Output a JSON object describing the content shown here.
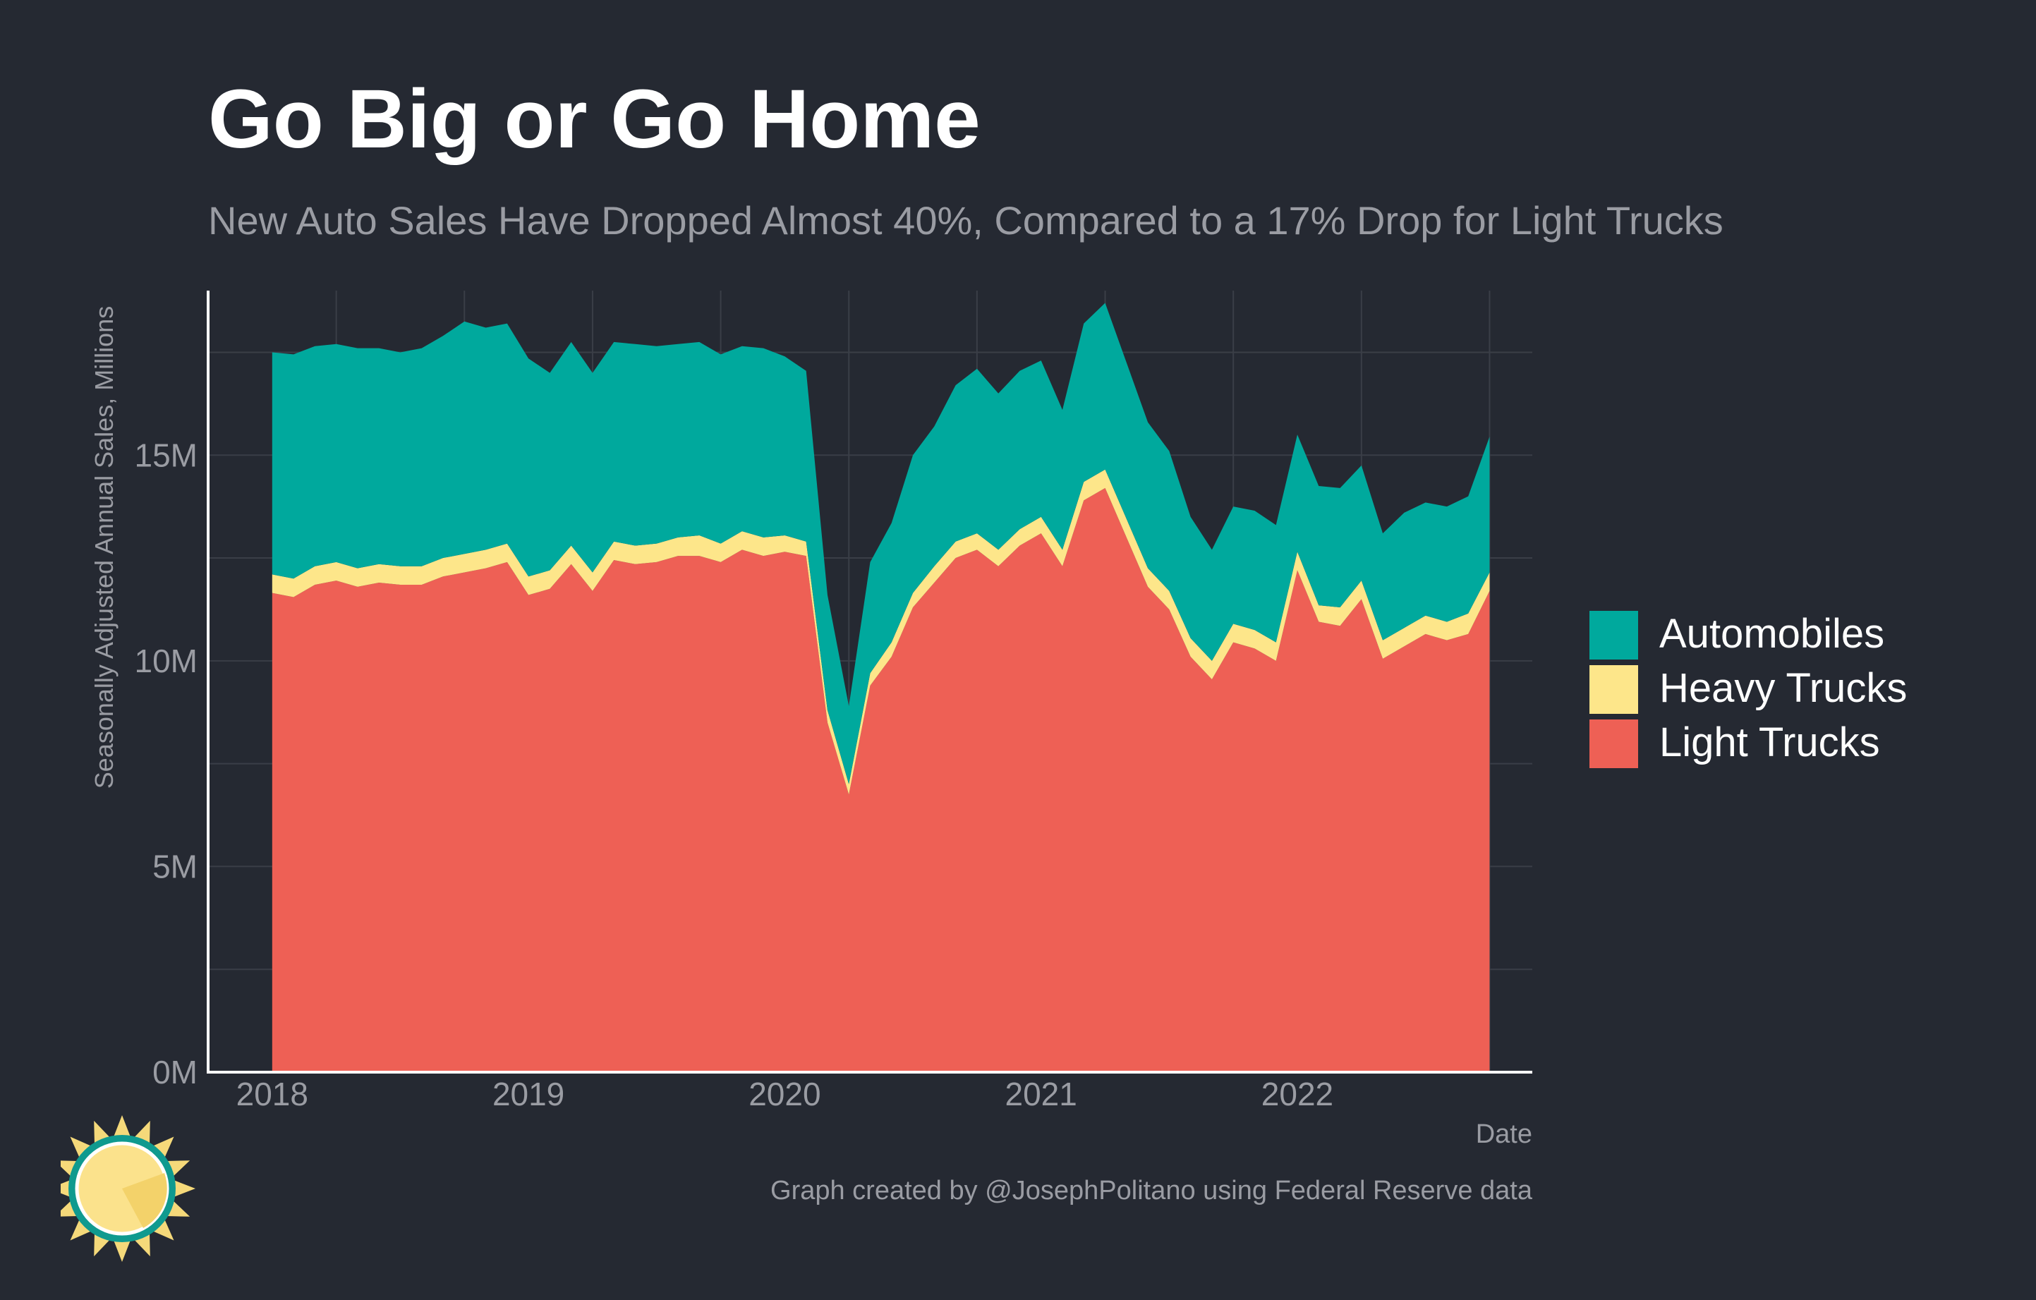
{
  "colors": {
    "background": "#252932",
    "grid": "#3a3e47",
    "axis": "#ffffff",
    "automobiles": "#00a99d",
    "heavy_trucks": "#fde68a",
    "light_trucks": "#ee6055",
    "text_muted": "#9a9ca3"
  },
  "caption": "Graph created by @JosephPolitano using Federal Reserve data",
  "chart_data": {
    "type": "area",
    "stacked": true,
    "title": "Go Big or Go Home",
    "subtitle": "New Auto Sales Have Dropped Almost 40%, Compared to a 17% Drop for Light Trucks",
    "xlabel": "Date",
    "ylabel": "Seasonally Adjusted Annual Sales, Millions",
    "x_ticks": [
      "2018",
      "2019",
      "2020",
      "2021",
      "2022"
    ],
    "y_ticks": [
      "0M",
      "5M",
      "10M",
      "15M"
    ],
    "ylim": [
      0,
      19
    ],
    "xlim": [
      "2017-10",
      "2022-12"
    ],
    "grid": true,
    "legend_position": "right",
    "x": [
      "2018-01",
      "2018-02",
      "2018-03",
      "2018-04",
      "2018-05",
      "2018-06",
      "2018-07",
      "2018-08",
      "2018-09",
      "2018-10",
      "2018-11",
      "2018-12",
      "2019-01",
      "2019-02",
      "2019-03",
      "2019-04",
      "2019-05",
      "2019-06",
      "2019-07",
      "2019-08",
      "2019-09",
      "2019-10",
      "2019-11",
      "2019-12",
      "2020-01",
      "2020-02",
      "2020-03",
      "2020-04",
      "2020-05",
      "2020-06",
      "2020-07",
      "2020-08",
      "2020-09",
      "2020-10",
      "2020-11",
      "2020-12",
      "2021-01",
      "2021-02",
      "2021-03",
      "2021-04",
      "2021-05",
      "2021-06",
      "2021-07",
      "2021-08",
      "2021-09",
      "2021-10",
      "2021-11",
      "2021-12",
      "2022-01",
      "2022-02",
      "2022-03",
      "2022-04",
      "2022-05",
      "2022-06",
      "2022-07",
      "2022-08",
      "2022-09",
      "2022-10"
    ],
    "series": [
      {
        "name": "Light Trucks",
        "values": [
          11.65,
          11.55,
          11.85,
          11.95,
          11.8,
          11.9,
          11.85,
          11.85,
          12.05,
          12.15,
          12.25,
          12.4,
          11.6,
          11.75,
          12.35,
          11.7,
          12.45,
          12.35,
          12.4,
          12.55,
          12.55,
          12.4,
          12.7,
          12.55,
          12.65,
          12.55,
          8.5,
          6.75,
          9.4,
          10.1,
          11.3,
          11.9,
          12.5,
          12.7,
          12.3,
          12.8,
          13.1,
          12.3,
          13.9,
          14.2,
          13.0,
          11.8,
          11.25,
          10.1,
          9.55,
          10.45,
          10.3,
          10.0,
          12.2,
          10.95,
          10.85,
          11.5,
          10.05,
          10.35,
          10.65,
          10.5,
          10.65,
          11.7
        ]
      },
      {
        "name": "Heavy Trucks",
        "values": [
          0.45,
          0.45,
          0.45,
          0.45,
          0.45,
          0.45,
          0.45,
          0.45,
          0.45,
          0.45,
          0.45,
          0.45,
          0.45,
          0.45,
          0.45,
          0.45,
          0.45,
          0.45,
          0.45,
          0.45,
          0.5,
          0.45,
          0.45,
          0.45,
          0.4,
          0.35,
          0.3,
          0.25,
          0.3,
          0.35,
          0.35,
          0.4,
          0.4,
          0.4,
          0.4,
          0.4,
          0.4,
          0.4,
          0.45,
          0.45,
          0.45,
          0.45,
          0.45,
          0.45,
          0.45,
          0.45,
          0.45,
          0.45,
          0.45,
          0.4,
          0.45,
          0.45,
          0.45,
          0.45,
          0.45,
          0.45,
          0.5,
          0.45
        ]
      },
      {
        "name": "Automobiles",
        "values": [
          5.4,
          5.45,
          5.35,
          5.3,
          5.35,
          5.25,
          5.2,
          5.3,
          5.4,
          5.65,
          5.4,
          5.35,
          5.3,
          4.8,
          4.95,
          4.85,
          4.85,
          4.9,
          4.8,
          4.7,
          4.7,
          4.6,
          4.5,
          4.6,
          4.35,
          4.15,
          2.8,
          1.9,
          2.7,
          2.9,
          3.35,
          3.4,
          3.8,
          4.0,
          3.8,
          3.85,
          3.8,
          3.4,
          3.85,
          4.05,
          3.8,
          3.55,
          3.4,
          2.95,
          2.7,
          2.85,
          2.9,
          2.85,
          2.85,
          2.9,
          2.9,
          2.8,
          2.6,
          2.8,
          2.75,
          2.8,
          2.85,
          3.3
        ]
      }
    ]
  }
}
